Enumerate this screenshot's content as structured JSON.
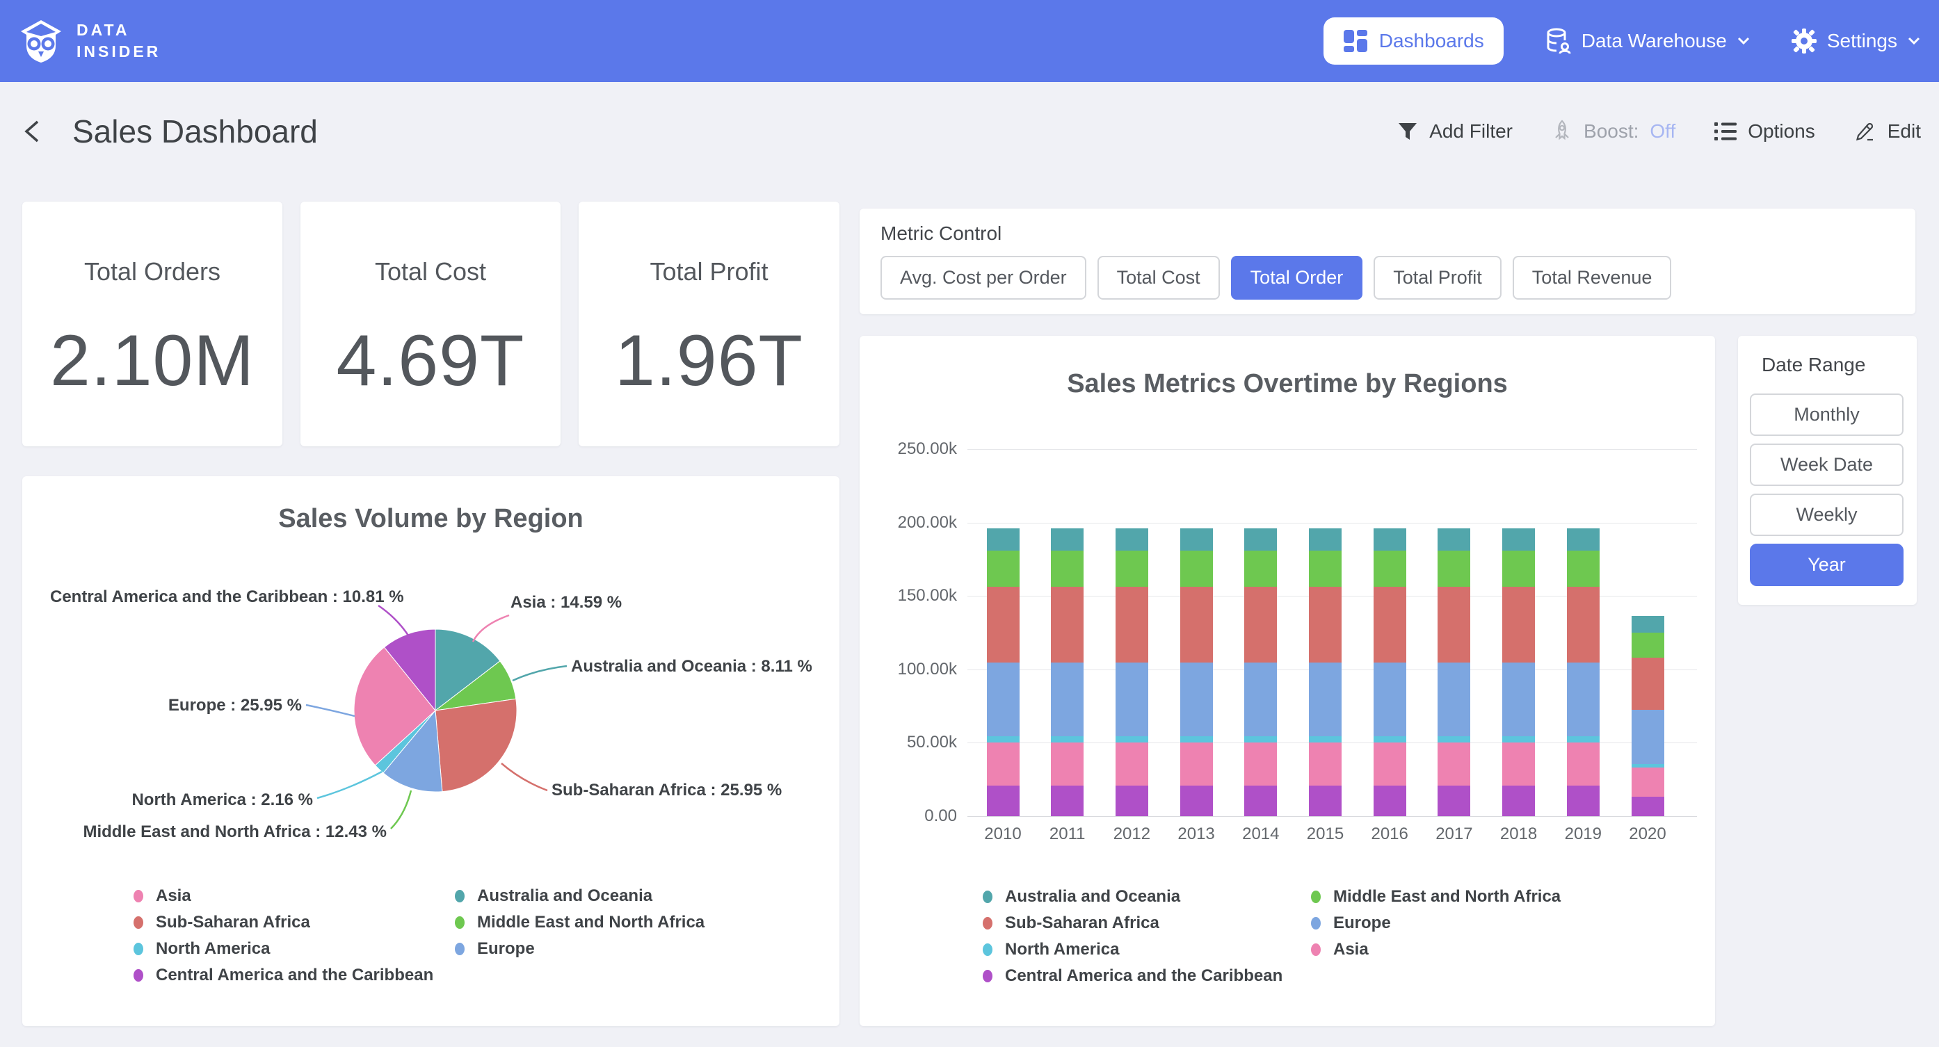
{
  "topbar": {
    "brand": {
      "line1": "DATA",
      "line2": "INSIDER"
    },
    "nav": [
      {
        "label": "Dashboards",
        "active": true
      },
      {
        "label": "Data Warehouse",
        "dropdown": true
      },
      {
        "label": "Settings",
        "dropdown": true
      }
    ]
  },
  "header": {
    "title": "Sales Dashboard",
    "actions": {
      "add_filter": "Add Filter",
      "boost_label": "Boost:",
      "boost_state": "Off",
      "options": "Options",
      "edit": "Edit"
    }
  },
  "kpis": [
    {
      "label": "Total Orders",
      "value": "2.10M"
    },
    {
      "label": "Total Cost",
      "value": "4.69T"
    },
    {
      "label": "Total Profit",
      "value": "1.96T"
    }
  ],
  "metric_control": {
    "title": "Metric Control",
    "options": [
      {
        "label": "Avg. Cost per Order",
        "active": false
      },
      {
        "label": "Total Cost",
        "active": false
      },
      {
        "label": "Total Order",
        "active": true
      },
      {
        "label": "Total Profit",
        "active": false
      },
      {
        "label": "Total Revenue",
        "active": false
      }
    ]
  },
  "date_range": {
    "title": "Date Range",
    "options": [
      {
        "label": "Monthly",
        "active": false
      },
      {
        "label": "Week Date",
        "active": false
      },
      {
        "label": "Weekly",
        "active": false
      },
      {
        "label": "Year",
        "active": true
      }
    ]
  },
  "colors": {
    "accent": "#5b78ea",
    "background": "#f0f1f6",
    "boost_off": "#a7b6f2"
  },
  "chart_data": [
    {
      "type": "pie",
      "title": "Sales Volume by Region",
      "slices": [
        {
          "label": "Asia",
          "value_pct": 14.59,
          "color": "#52a6ab"
        },
        {
          "label": "Australia and Oceania",
          "value_pct": 8.11,
          "color": "#6ec850"
        },
        {
          "label": "Sub-Saharan Africa",
          "value_pct": 25.95,
          "color": "#d5706c"
        },
        {
          "label": "Middle East and North Africa",
          "value_pct": 12.43,
          "color": "#7da6e0"
        },
        {
          "label": "North America",
          "value_pct": 2.16,
          "color": "#5cc5dd"
        },
        {
          "label": "Europe",
          "value_pct": 25.95,
          "color": "#ee82b1"
        },
        {
          "label": "Central America and the Caribbean",
          "value_pct": 10.81,
          "color": "#af50c8"
        }
      ],
      "start_angle": "top",
      "direction": "clockwise",
      "callouts": [
        {
          "series": "Central America and the Caribbean",
          "text": "Central America and the Caribbean : 10.81 %"
        },
        {
          "series": "Asia",
          "text": "Asia : 14.59 %"
        },
        {
          "series": "Australia and Oceania",
          "text": "Australia and Oceania : 8.11 %"
        },
        {
          "series": "Europe",
          "text": "Europe : 25.95 %"
        },
        {
          "series": "Sub-Saharan Africa",
          "text": "Sub-Saharan Africa : 25.95 %"
        },
        {
          "series": "North America",
          "text": "North America : 2.16 %"
        },
        {
          "series": "Middle East and North Africa",
          "text": "Middle East and North Africa : 12.43 %"
        }
      ],
      "legend": [
        "Asia",
        "Australia and Oceania",
        "Sub-Saharan Africa",
        "Middle East and North Africa",
        "North America",
        "Europe",
        "Central America and the Caribbean"
      ],
      "legend_position": "bottom"
    },
    {
      "type": "bar",
      "stacked": true,
      "title": "Sales Metrics Overtime by Regions",
      "categories": [
        "2010",
        "2011",
        "2012",
        "2013",
        "2014",
        "2015",
        "2016",
        "2017",
        "2018",
        "2019",
        "2020"
      ],
      "series": [
        {
          "name": "Central America and the Caribbean",
          "color": "#af50c8",
          "values": [
            21000,
            21000,
            21000,
            21000,
            21000,
            21000,
            21000,
            21000,
            21000,
            21000,
            13300
          ]
        },
        {
          "name": "Asia",
          "color": "#ee82b1",
          "values": [
            29000,
            29000,
            29000,
            29000,
            29000,
            29000,
            29000,
            29000,
            29000,
            29000,
            19800
          ]
        },
        {
          "name": "North America",
          "color": "#5cc5dd",
          "values": [
            4300,
            4300,
            4300,
            4300,
            4300,
            4300,
            4300,
            4300,
            4300,
            4300,
            2500
          ]
        },
        {
          "name": "Europe",
          "color": "#7da6e0",
          "values": [
            50500,
            50500,
            50500,
            50500,
            50500,
            50500,
            50500,
            50500,
            50500,
            50500,
            36800
          ]
        },
        {
          "name": "Sub-Saharan Africa",
          "color": "#d5706c",
          "values": [
            51300,
            51300,
            51300,
            51300,
            51300,
            51300,
            51300,
            51300,
            51300,
            51300,
            35700
          ]
        },
        {
          "name": "Middle East and North Africa",
          "color": "#6ec850",
          "values": [
            24600,
            24600,
            24600,
            24600,
            24600,
            24600,
            24600,
            24600,
            24600,
            24600,
            17000
          ]
        },
        {
          "name": "Australia and Oceania",
          "color": "#52a6ab",
          "values": [
            15500,
            15500,
            15500,
            15500,
            15500,
            15500,
            15500,
            15500,
            15500,
            15500,
            11500
          ]
        }
      ],
      "ylim": [
        0,
        250000
      ],
      "y_ticks": [
        {
          "value": 0,
          "label": "0.00"
        },
        {
          "value": 50000,
          "label": "50.00k"
        },
        {
          "value": 100000,
          "label": "100.00k"
        },
        {
          "value": 150000,
          "label": "150.00k"
        },
        {
          "value": 200000,
          "label": "200.00k"
        },
        {
          "value": 250000,
          "label": "250.00k"
        }
      ],
      "grid": "horizontal",
      "legend": [
        "Australia and Oceania",
        "Middle East and North Africa",
        "Sub-Saharan Africa",
        "Europe",
        "North America",
        "Asia",
        "Central America and the Caribbean"
      ],
      "legend_position": "bottom"
    }
  ]
}
